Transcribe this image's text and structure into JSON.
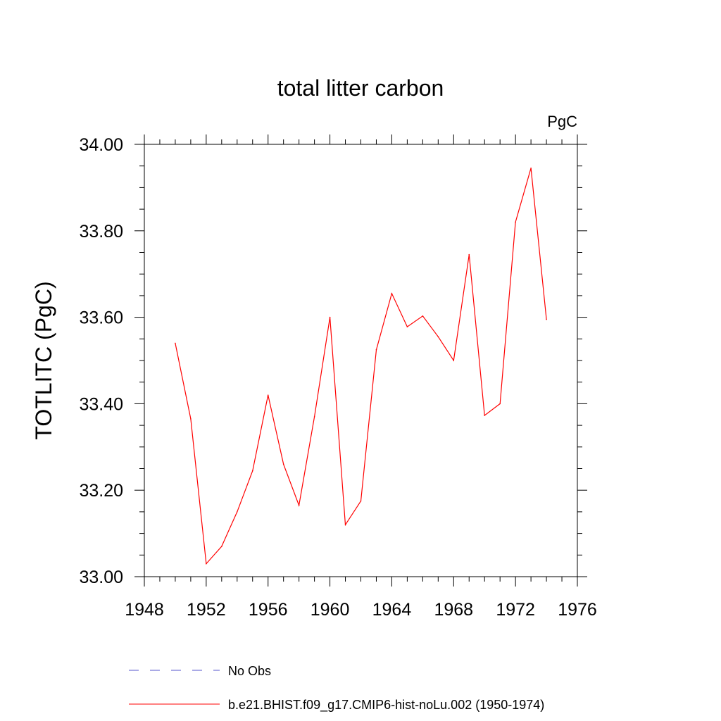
{
  "chart_data": {
    "type": "line",
    "title": "total litter carbon",
    "units_label": "PgC",
    "ylabel": "TOTLITC  (PgC)",
    "xlabel": "",
    "xlim": [
      1948,
      1976
    ],
    "ylim": [
      33.0,
      34.0
    ],
    "x_ticks": [
      1948,
      1952,
      1956,
      1960,
      1964,
      1968,
      1972,
      1976
    ],
    "x_tick_labels": [
      "1948",
      "1952",
      "1956",
      "1960",
      "1964",
      "1968",
      "1972",
      "1976"
    ],
    "y_ticks": [
      33.0,
      33.2,
      33.4,
      33.6,
      33.8,
      34.0
    ],
    "y_tick_labels": [
      "33.00",
      "33.20",
      "33.40",
      "33.60",
      "33.80",
      "34.00"
    ],
    "grid": false,
    "legend_position": "bottom",
    "series": [
      {
        "name": "b.e21.BHIST.f09_g17.CMIP6-hist-noLu.002 (1950-1974)",
        "color": "#ff0000",
        "style": "solid",
        "x": [
          1950,
          1951,
          1952,
          1953,
          1954,
          1955,
          1956,
          1957,
          1958,
          1959,
          1960,
          1961,
          1962,
          1963,
          1964,
          1965,
          1966,
          1967,
          1968,
          1969,
          1970,
          1971,
          1972,
          1973,
          1974
        ],
        "y": [
          33.54,
          33.365,
          33.03,
          33.07,
          33.15,
          33.245,
          33.42,
          33.26,
          33.165,
          33.37,
          33.6,
          33.12,
          33.175,
          33.525,
          33.655,
          33.578,
          33.603,
          33.555,
          33.5,
          33.745,
          33.373,
          33.4,
          33.82,
          33.945,
          33.595
        ]
      }
    ],
    "legend": [
      {
        "label": "No Obs",
        "color": "#5555cc",
        "style": "dashed"
      },
      {
        "label": "b.e21.BHIST.f09_g17.CMIP6-hist-noLu.002 (1950-1974)",
        "color": "#ff0000",
        "style": "solid"
      }
    ]
  }
}
